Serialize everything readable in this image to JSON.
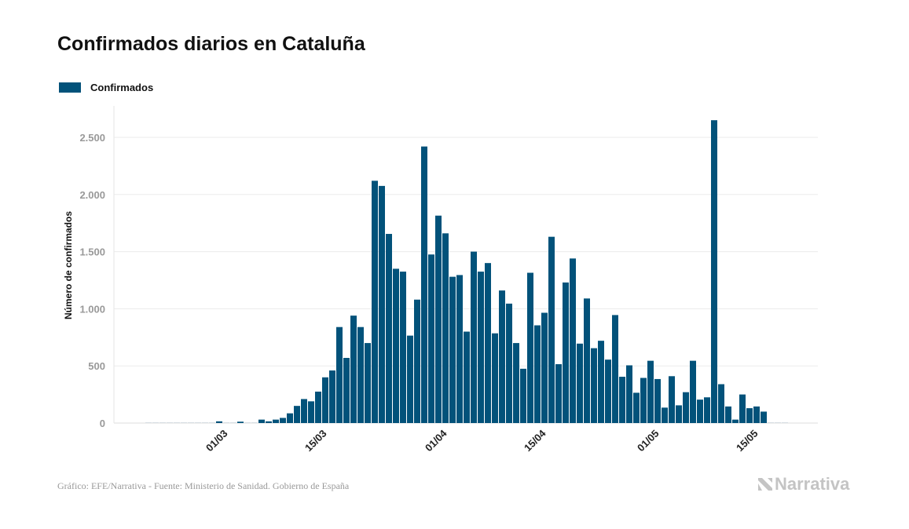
{
  "title": "Confirmados diarios en Cataluña",
  "footer": "Gráfico: EFE/Narrativa - Fuente: Ministerio de Sanidad. Gobierno de España",
  "logo": "Narrativa",
  "colors": {
    "bar": "#02527a",
    "grid": "#ebebeb",
    "tick_text": "#999999"
  },
  "chart_data": {
    "type": "bar",
    "title": "Confirmados diarios en Cataluña",
    "ylabel": "Número de confirmados",
    "xlabel": "",
    "ylim": [
      0,
      2700
    ],
    "yticks": [
      0,
      500,
      1000,
      1500,
      2000,
      2500
    ],
    "ytick_labels": [
      "0",
      "500",
      "1.000",
      "1.500",
      "2.000",
      "2.500"
    ],
    "xtick_labels": [
      "01/03",
      "15/03",
      "01/04",
      "15/04",
      "01/05",
      "15/05"
    ],
    "grid": true,
    "legend": "top-left",
    "series": [
      {
        "name": "Confirmados"
      }
    ],
    "categories": [
      "19/02",
      "20/02",
      "21/02",
      "22/02",
      "23/02",
      "24/02",
      "25/02",
      "26/02",
      "27/02",
      "28/02",
      "29/02",
      "01/03",
      "02/03",
      "03/03",
      "04/03",
      "05/03",
      "06/03",
      "07/03",
      "08/03",
      "09/03",
      "10/03",
      "11/03",
      "12/03",
      "13/03",
      "14/03",
      "15/03",
      "16/03",
      "17/03",
      "18/03",
      "19/03",
      "20/03",
      "21/03",
      "22/03",
      "23/03",
      "24/03",
      "25/03",
      "26/03",
      "27/03",
      "28/03",
      "29/03",
      "30/03",
      "31/03",
      "01/04",
      "02/04",
      "03/04",
      "04/04",
      "05/04",
      "06/04",
      "07/04",
      "08/04",
      "09/04",
      "10/04",
      "11/04",
      "12/04",
      "13/04",
      "14/04",
      "15/04",
      "16/04",
      "17/04",
      "18/04",
      "19/04",
      "20/04",
      "21/04",
      "22/04",
      "23/04",
      "24/04",
      "25/04",
      "26/04",
      "27/04",
      "28/04",
      "29/04",
      "30/04",
      "01/05",
      "02/05",
      "03/05",
      "04/05",
      "05/05",
      "06/05",
      "07/05",
      "08/05",
      "09/05",
      "10/05",
      "11/05",
      "12/05",
      "13/05",
      "14/05",
      "15/05",
      "16/05",
      "17/05",
      "18/05",
      "19/05"
    ],
    "values": [
      0,
      0,
      0,
      0,
      0,
      0,
      0,
      0,
      0,
      0,
      15,
      0,
      0,
      12,
      0,
      0,
      30,
      15,
      30,
      45,
      85,
      150,
      210,
      190,
      275,
      400,
      460,
      840,
      570,
      940,
      840,
      700,
      2120,
      2075,
      1655,
      1350,
      1325,
      765,
      1080,
      2420,
      1475,
      1815,
      1660,
      1280,
      1295,
      800,
      1500,
      1325,
      1400,
      785,
      1160,
      1045,
      700,
      475,
      1315,
      855,
      965,
      1630,
      515,
      1230,
      1440,
      695,
      1090,
      655,
      720,
      555,
      945,
      405,
      505,
      265,
      395,
      545,
      385,
      135,
      410,
      155,
      270,
      545,
      205,
      225,
      2650,
      340,
      145,
      30,
      250,
      130,
      145,
      100,
      0,
      0,
      0
    ]
  }
}
